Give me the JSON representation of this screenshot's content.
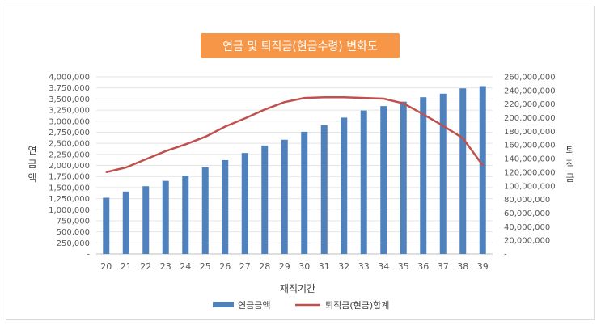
{
  "chart_data": {
    "type": "bar",
    "title": "연금 및 퇴직금(현금수령) 변화도",
    "xlabel": "재직기간",
    "ylabel_left": "연금액",
    "ylabel_right": "퇴직금",
    "categories": [
      "20",
      "21",
      "22",
      "23",
      "24",
      "25",
      "26",
      "27",
      "28",
      "29",
      "30",
      "31",
      "32",
      "33",
      "34",
      "35",
      "36",
      "37",
      "38",
      "39"
    ],
    "ylim_left": [
      0,
      4000000
    ],
    "ylim_right": [
      0,
      260000000
    ],
    "left_ticks": [
      "-",
      "250,000",
      "500,000",
      "750,000",
      "1,000,000",
      "1,250,000",
      "1,500,000",
      "1,750,000",
      "2,000,000",
      "2,250,000",
      "2,500,000",
      "2,750,000",
      "3,000,000",
      "3,250,000",
      "3,500,000",
      "3,750,000",
      "4,000,000"
    ],
    "right_ticks": [
      "-",
      "20,000,000",
      "40,000,000",
      "60,000,000",
      "80,000,000",
      "100,000,000",
      "120,000,000",
      "140,000,000",
      "160,000,000",
      "180,000,000",
      "200,000,000",
      "220,000,000",
      "240,000,000",
      "260,000,000"
    ],
    "grid": true,
    "legend_position": "bottom",
    "series": [
      {
        "name": "연금금액",
        "type": "bar",
        "axis": "left",
        "color": "#4f81bd",
        "values": [
          1270000,
          1410000,
          1530000,
          1650000,
          1770000,
          1960000,
          2120000,
          2280000,
          2450000,
          2580000,
          2760000,
          2910000,
          3080000,
          3240000,
          3340000,
          3440000,
          3540000,
          3620000,
          3740000,
          3790000
        ]
      },
      {
        "name": "퇴직금(현금)합계",
        "type": "line",
        "axis": "right",
        "color": "#c0504d",
        "values": [
          120000000,
          127000000,
          139000000,
          151000000,
          161000000,
          172000000,
          187000000,
          199000000,
          212000000,
          223000000,
          229000000,
          230000000,
          230000000,
          229000000,
          228000000,
          221000000,
          205000000,
          188000000,
          170000000,
          130000000
        ]
      }
    ]
  }
}
